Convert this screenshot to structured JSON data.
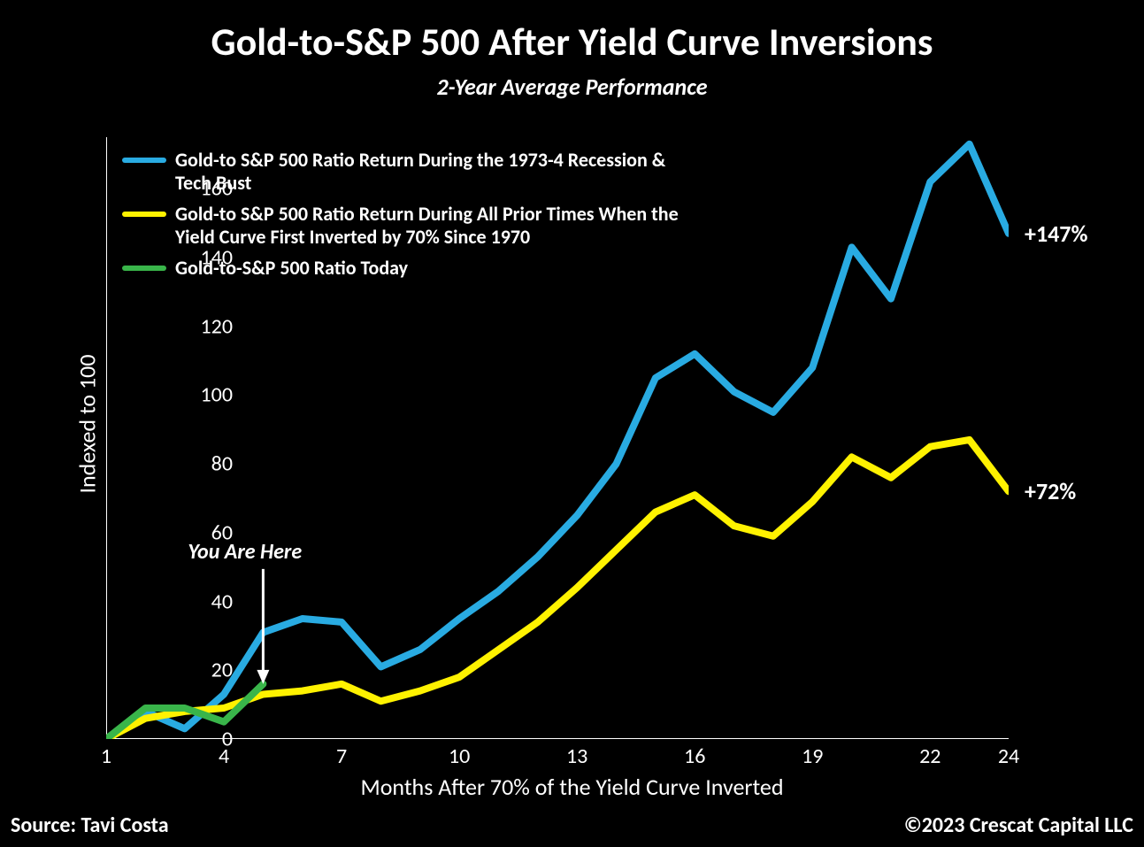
{
  "title": "Gold-to-S&P 500 After Yield Curve Inversions",
  "subtitle": "2-Year Average Performance",
  "ylabel": "Indexed to 100",
  "xlabel": "Months After 70% of the Yield Curve Inverted",
  "source": "Source: Tavi Costa",
  "copyright": "©2023 Crescat Capital LLC",
  "chart": {
    "type": "line",
    "background_color": "#000000",
    "text_color": "#ffffff",
    "axis_color": "#ffffff",
    "xlim": [
      1,
      24
    ],
    "ylim": [
      0,
      175
    ],
    "xticks": [
      1,
      4,
      7,
      10,
      13,
      16,
      19,
      22,
      24
    ],
    "yticks": [
      0,
      20,
      40,
      60,
      80,
      100,
      120,
      140,
      160
    ],
    "line_width": 8,
    "title_fontsize": 44,
    "subtitle_fontsize": 26,
    "label_fontsize": 26,
    "tick_fontsize": 24,
    "legend_fontsize": 22,
    "endlabel_fontsize": 26,
    "series": [
      {
        "name": "recession_tech_bust",
        "label": "Gold-to S&P 500 Ratio Return During the 1973-4 Recession & Tech Bust",
        "color": "#29abe2",
        "end_label": "+147%",
        "x": [
          1,
          2,
          3,
          4,
          5,
          6,
          7,
          8,
          9,
          10,
          11,
          12,
          13,
          14,
          15,
          16,
          17,
          18,
          19,
          20,
          21,
          22,
          23,
          24
        ],
        "y": [
          0,
          8,
          3,
          13,
          31,
          35,
          34,
          21,
          26,
          35,
          43,
          53,
          65,
          80,
          105,
          112,
          101,
          95,
          108,
          143,
          128,
          162,
          173,
          147
        ]
      },
      {
        "name": "all_prior",
        "label": "Gold-to S&P 500 Ratio Return During All Prior Times When the Yield Curve First Inverted by 70% Since 1970",
        "color": "#fff200",
        "end_label": "+72%",
        "x": [
          1,
          2,
          3,
          4,
          5,
          6,
          7,
          8,
          9,
          10,
          11,
          12,
          13,
          14,
          15,
          16,
          17,
          18,
          19,
          20,
          21,
          22,
          23,
          24
        ],
        "y": [
          0,
          6,
          8,
          9,
          13,
          14,
          16,
          11,
          14,
          18,
          26,
          34,
          44,
          55,
          66,
          71,
          62,
          59,
          69,
          82,
          76,
          85,
          87,
          72
        ]
      },
      {
        "name": "today",
        "label": "Gold-to-S&P 500 Ratio Today",
        "color": "#39b54a",
        "end_label": "",
        "x": [
          1,
          2,
          3,
          4,
          5
        ],
        "y": [
          0,
          9,
          9,
          5,
          16
        ]
      }
    ],
    "annotation": {
      "text": "You Are Here",
      "arrow_color": "#ffffff",
      "target_x": 5,
      "target_y": 16
    }
  }
}
